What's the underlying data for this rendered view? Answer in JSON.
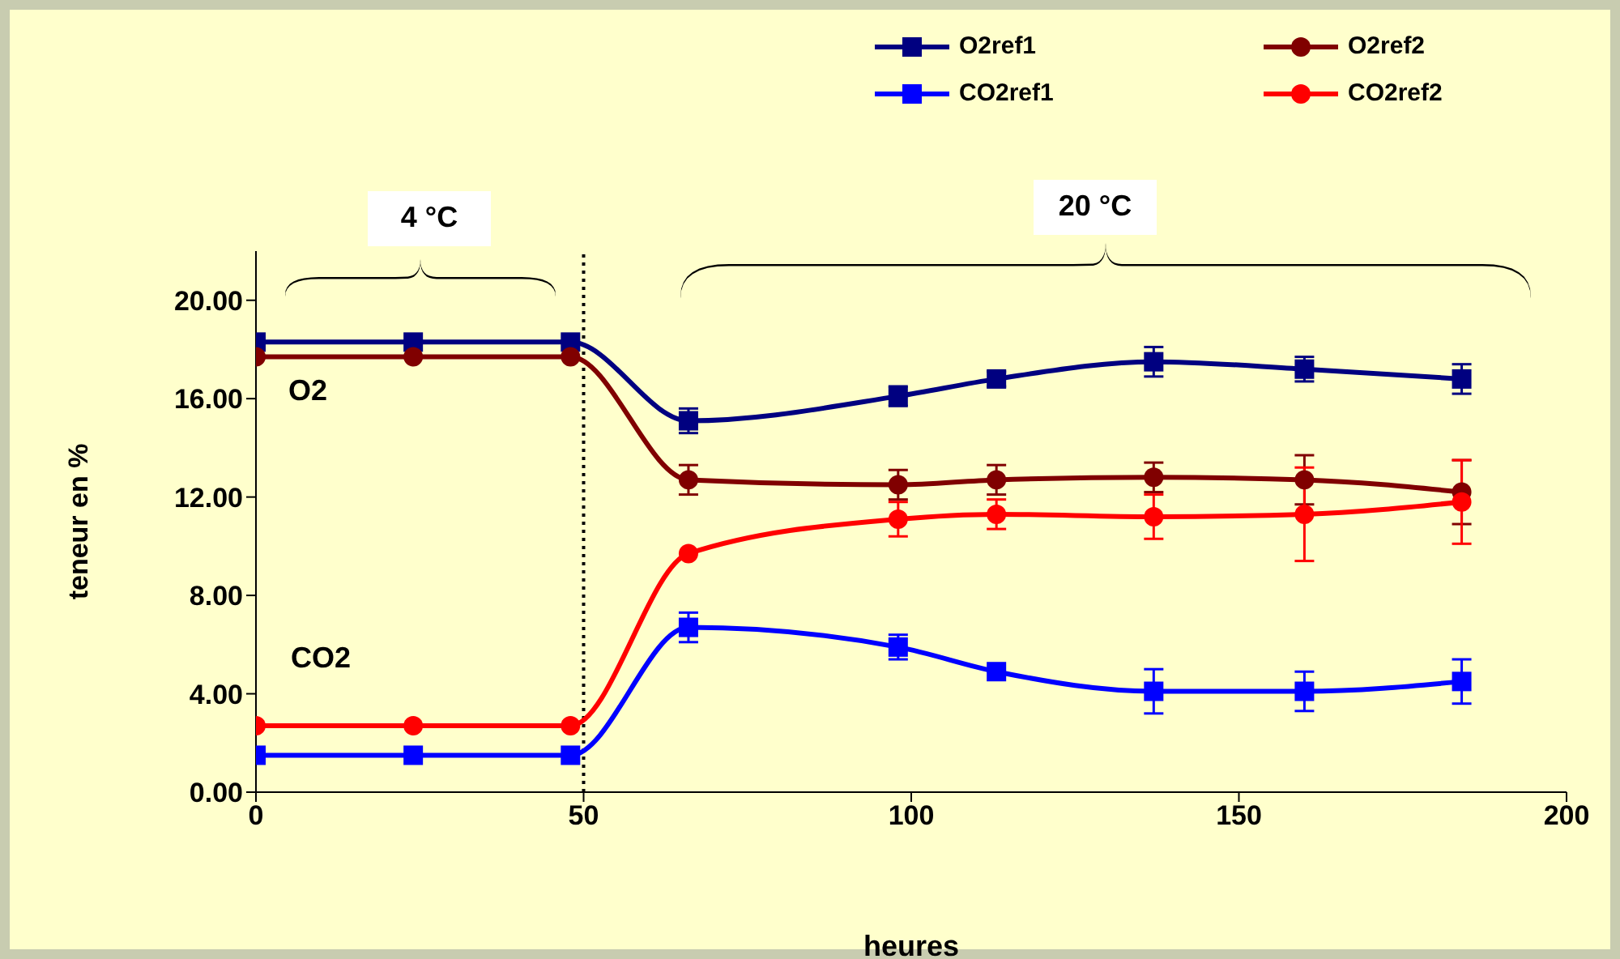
{
  "chart_data": {
    "type": "line",
    "xlabel": "heures",
    "ylabel": "teneur en %",
    "x": [
      0,
      24,
      48,
      66,
      98,
      113,
      137,
      160,
      184
    ],
    "xlim": [
      0,
      200
    ],
    "xticks": [
      0,
      50,
      100,
      150,
      200
    ],
    "ylim": [
      0,
      22
    ],
    "yticks": [
      {
        "value": 0,
        "label": "0.00"
      },
      {
        "value": 4,
        "label": "4.00"
      },
      {
        "value": 8,
        "label": "8.00"
      },
      {
        "value": 12,
        "label": "12.00"
      },
      {
        "value": 16,
        "label": "16.00"
      },
      {
        "value": 20,
        "label": "20.00"
      }
    ],
    "grid": false,
    "legend": "top right",
    "line_style": "solid",
    "ref_lines": [
      {
        "axis": "x",
        "value": 50,
        "color": "#000000",
        "line_style": "dotted"
      }
    ],
    "annotations": [
      "4 °C",
      "20 °C",
      "O2",
      "CO2"
    ],
    "series": [
      {
        "name": "O2ref1",
        "color": "#000080",
        "marker": "square",
        "values": [
          18.3,
          18.3,
          18.3,
          15.1,
          16.1,
          16.8,
          17.5,
          17.2,
          16.8
        ],
        "errors": [
          null,
          null,
          null,
          0.5,
          0.4,
          0.3,
          0.6,
          0.5,
          0.6
        ]
      },
      {
        "name": "O2ref2",
        "color": "#800000",
        "marker": "circle",
        "values": [
          17.7,
          17.7,
          17.7,
          12.7,
          12.5,
          12.7,
          12.8,
          12.7,
          12.2
        ],
        "errors": [
          null,
          null,
          null,
          0.6,
          0.6,
          0.6,
          0.6,
          1.0,
          1.3
        ]
      },
      {
        "name": "CO2ref1",
        "color": "#0000ff",
        "marker": "square",
        "values": [
          1.5,
          1.5,
          1.5,
          6.7,
          5.9,
          4.9,
          4.1,
          4.1,
          4.5
        ],
        "errors": [
          null,
          null,
          null,
          0.6,
          0.5,
          null,
          0.9,
          0.8,
          0.9
        ]
      },
      {
        "name": "CO2ref2",
        "color": "#ff0000",
        "marker": "circle",
        "values": [
          2.7,
          2.7,
          2.7,
          9.7,
          11.1,
          11.3,
          11.2,
          11.3,
          11.8
        ],
        "errors": [
          null,
          null,
          null,
          null,
          0.7,
          0.6,
          0.9,
          1.9,
          1.7
        ]
      }
    ]
  }
}
